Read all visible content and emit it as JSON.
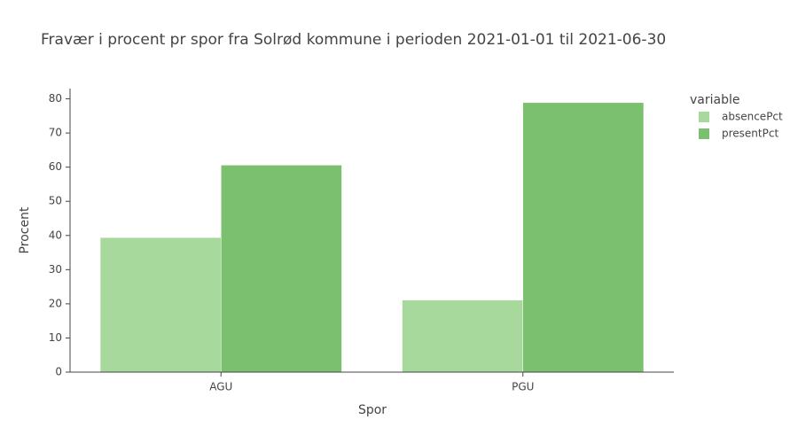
{
  "chart_data": {
    "type": "bar",
    "title": "Fravær i procent pr spor fra Solrød kommune i perioden 2021-01-01 til 2021-06-30",
    "x_label": "Spor",
    "y_label": "Procent",
    "categories": [
      "AGU",
      "PGU"
    ],
    "legend_title": "variable",
    "series": [
      {
        "name": "absencePct",
        "color": "#a8d99c",
        "values": [
          39.4,
          21.1
        ]
      },
      {
        "name": "presentPct",
        "color": "#7bc06e",
        "values": [
          60.6,
          78.9
        ]
      }
    ],
    "ylim": [
      0,
      83
    ],
    "yticks": [
      0,
      10,
      20,
      30,
      40,
      50,
      60,
      70,
      80
    ],
    "grid": false,
    "legend": "right"
  }
}
